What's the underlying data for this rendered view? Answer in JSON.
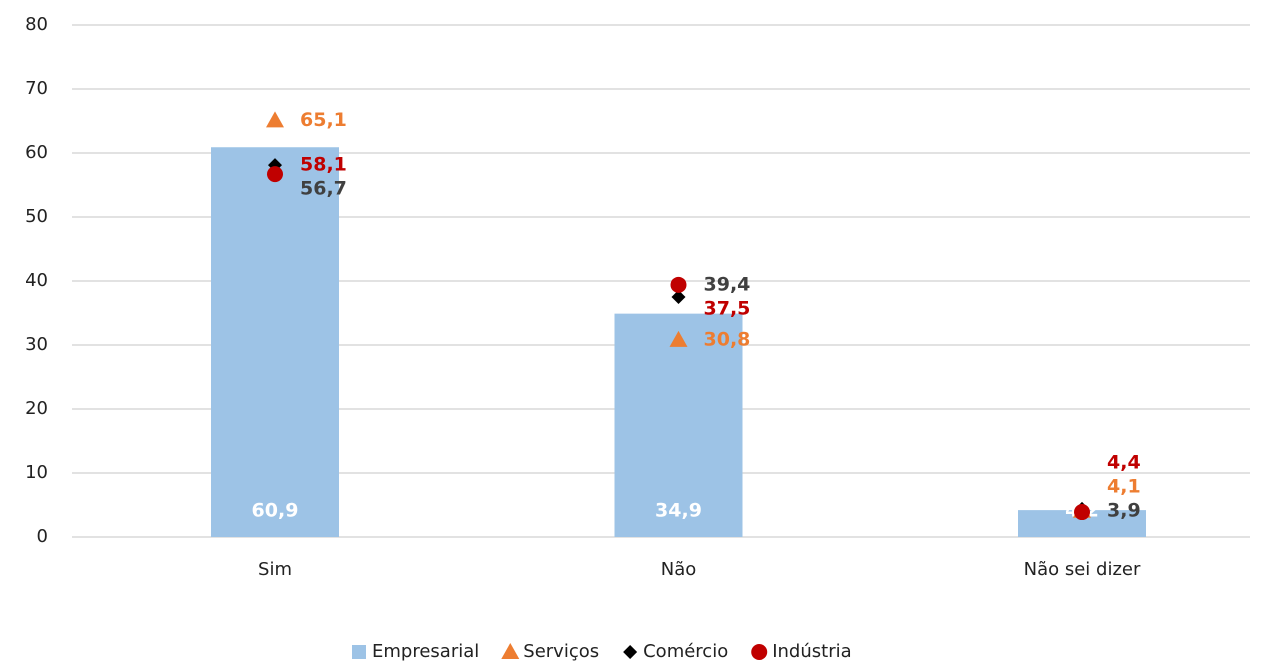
{
  "chart_data": {
    "type": "bar_markers",
    "categories": [
      "Sim",
      "Não",
      "Não sei dizer"
    ],
    "ylim": [
      0,
      80
    ],
    "yticks": [
      0,
      10,
      20,
      30,
      40,
      50,
      60,
      70,
      80
    ],
    "grid": true,
    "series": [
      {
        "name": "Empresarial",
        "kind": "bar",
        "color": "#9dc3e6",
        "label_color": "#ffffff",
        "values": [
          60.9,
          34.9,
          4.2
        ],
        "value_labels": [
          "60,9",
          "34,9",
          "4,2"
        ]
      },
      {
        "name": "Serviços",
        "kind": "triangle",
        "color": "#ed7d31",
        "label_color": "#ed7d31",
        "values": [
          65.1,
          30.8,
          4.1
        ],
        "value_labels": [
          "65,1",
          "30,8",
          "4,1"
        ]
      },
      {
        "name": "Comércio",
        "kind": "diamond",
        "color": "#000000",
        "label_color": "#c00000",
        "values": [
          58.1,
          37.5,
          4.4
        ],
        "value_labels": [
          "58,1",
          "37,5",
          "4,4"
        ]
      },
      {
        "name": "Indústria",
        "kind": "circle",
        "color": "#c00000",
        "label_color": "#404040",
        "values": [
          56.7,
          39.4,
          3.9
        ],
        "value_labels": [
          "56,7",
          "39,4",
          "3,9"
        ]
      }
    ]
  }
}
